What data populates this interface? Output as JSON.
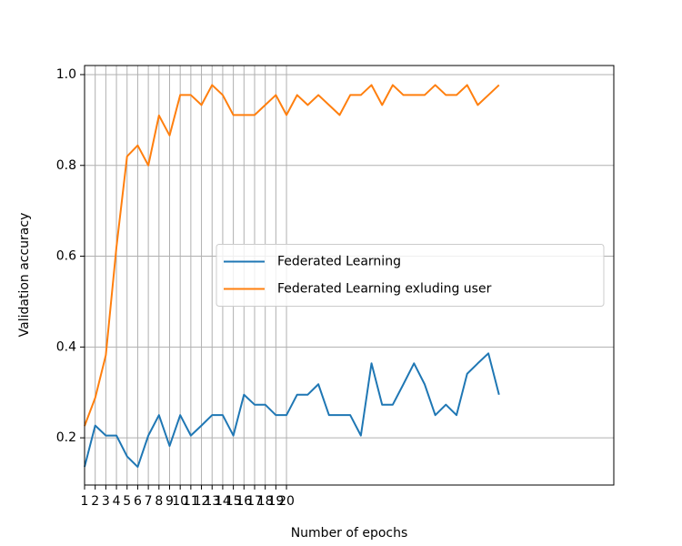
{
  "chart_data": {
    "type": "line",
    "xlabel": "Number of epochs",
    "ylabel": "Validation accuracy",
    "x": [
      1,
      2,
      3,
      4,
      5,
      6,
      7,
      8,
      9,
      10,
      11,
      12,
      13,
      14,
      15,
      16,
      17,
      18,
      19,
      20,
      21,
      22,
      23,
      24,
      25,
      26,
      27,
      28,
      29,
      30,
      31,
      32,
      33,
      34,
      35,
      36,
      37,
      38,
      39,
      40
    ],
    "series": [
      {
        "name": "Federated Learning",
        "color": "#1f77b4",
        "values": [
          0.136,
          0.227,
          0.205,
          0.205,
          0.159,
          0.136,
          0.205,
          0.25,
          0.182,
          0.25,
          0.205,
          0.227,
          0.25,
          0.25,
          0.205,
          0.295,
          0.273,
          0.273,
          0.25,
          0.25,
          0.295,
          0.295,
          0.318,
          0.25,
          0.25,
          0.25,
          0.205,
          0.364,
          0.273,
          0.273,
          0.318,
          0.364,
          0.318,
          0.25,
          0.273,
          0.25,
          0.341,
          0.364,
          0.386,
          0.295
        ]
      },
      {
        "name": "Federated Learning exluding user",
        "color": "#ff7f0e",
        "values": [
          0.226,
          0.288,
          0.382,
          0.62,
          0.82,
          0.844,
          0.8,
          0.91,
          0.866,
          0.955,
          0.955,
          0.933,
          0.977,
          0.955,
          0.911,
          0.911,
          0.911,
          0.933,
          0.955,
          0.911,
          0.955,
          0.933,
          0.955,
          0.933,
          0.911,
          0.955,
          0.955,
          0.977,
          0.933,
          0.977,
          0.955,
          0.955,
          0.955,
          0.977,
          0.955,
          0.955,
          0.977,
          0.933,
          0.955,
          0.977
        ]
      }
    ],
    "xlim": [
      1,
      50.8
    ],
    "xticks": [
      1,
      2,
      3,
      4,
      5,
      6,
      7,
      8,
      9,
      10,
      11,
      12,
      13,
      14,
      15,
      16,
      17,
      18,
      19,
      20
    ],
    "ylim": [
      0.096,
      1.02
    ],
    "yticks": [
      {
        "value": 0.2,
        "label": "0.2"
      },
      {
        "value": 0.4,
        "label": "0.4"
      },
      {
        "value": 0.6,
        "label": "0.6"
      },
      {
        "value": 0.8,
        "label": "0.8"
      },
      {
        "value": 1.0,
        "label": "1.0"
      }
    ],
    "grid": true,
    "legend": "center right"
  }
}
